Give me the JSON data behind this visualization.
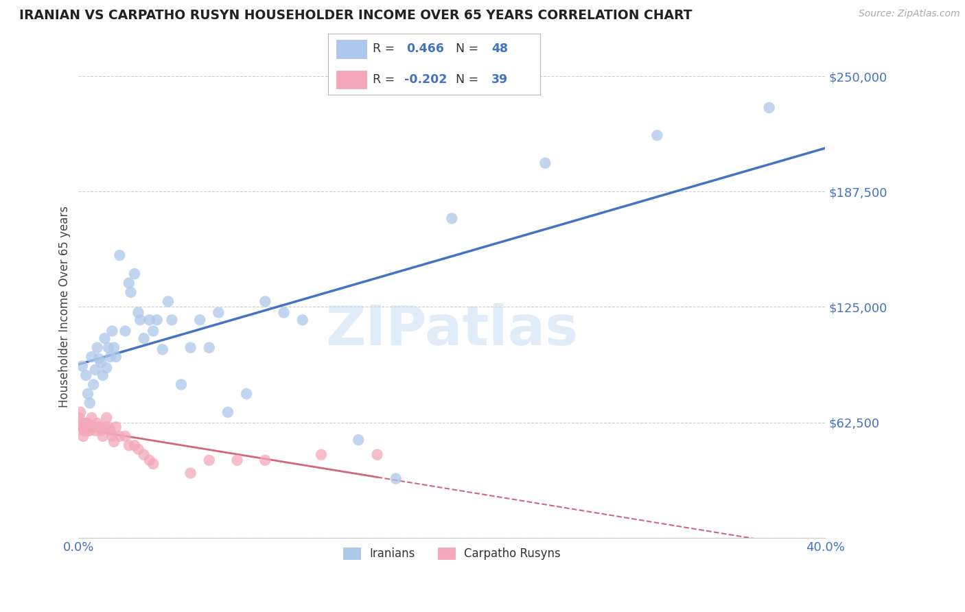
{
  "title": "IRANIAN VS CARPATHO RUSYN HOUSEHOLDER INCOME OVER 65 YEARS CORRELATION CHART",
  "source": "Source: ZipAtlas.com",
  "ylabel": "Householder Income Over 65 years",
  "xlim": [
    0.0,
    0.4
  ],
  "ylim": [
    0,
    250000
  ],
  "yticks": [
    0,
    62500,
    125000,
    187500,
    250000
  ],
  "ytick_labels": [
    "",
    "$62,500",
    "$125,000",
    "$187,500",
    "$250,000"
  ],
  "xtick_labels": [
    "0.0%",
    "40.0%"
  ],
  "xtick_positions": [
    0.0,
    0.4
  ],
  "iranian_R": "0.466",
  "iranian_N": "48",
  "carpatho_R": "-0.202",
  "carpatho_N": "39",
  "iranian_color": "#adc8ea",
  "carpatho_color": "#f4a7b9",
  "line_blue": "#4472c4",
  "line_pink": "#d4657a",
  "watermark": "ZIPatlas",
  "iranians_x": [
    0.002,
    0.004,
    0.005,
    0.006,
    0.008,
    0.009,
    0.01,
    0.011,
    0.012,
    0.013,
    0.014,
    0.015,
    0.016,
    0.017,
    0.018,
    0.019,
    0.02,
    0.022,
    0.025,
    0.027,
    0.028,
    0.03,
    0.032,
    0.033,
    0.035,
    0.038,
    0.04,
    0.042,
    0.045,
    0.048,
    0.05,
    0.055,
    0.06,
    0.065,
    0.07,
    0.075,
    0.08,
    0.09,
    0.1,
    0.11,
    0.12,
    0.15,
    0.17,
    0.2,
    0.25,
    0.31,
    0.37,
    0.007
  ],
  "iranians_y": [
    93000,
    88000,
    78000,
    73000,
    83000,
    91000,
    103000,
    97000,
    95000,
    88000,
    108000,
    92000,
    103000,
    98000,
    112000,
    103000,
    98000,
    153000,
    112000,
    138000,
    133000,
    143000,
    122000,
    118000,
    108000,
    118000,
    112000,
    118000,
    102000,
    128000,
    118000,
    83000,
    103000,
    118000,
    103000,
    122000,
    68000,
    78000,
    128000,
    122000,
    118000,
    53000,
    32000,
    173000,
    203000,
    218000,
    233000,
    98000
  ],
  "carpatho_x": [
    0.0005,
    0.001,
    0.0015,
    0.002,
    0.0025,
    0.003,
    0.0035,
    0.004,
    0.0045,
    0.005,
    0.006,
    0.007,
    0.008,
    0.009,
    0.01,
    0.011,
    0.012,
    0.013,
    0.014,
    0.015,
    0.016,
    0.017,
    0.018,
    0.019,
    0.02,
    0.022,
    0.025,
    0.027,
    0.03,
    0.032,
    0.035,
    0.038,
    0.04,
    0.06,
    0.07,
    0.085,
    0.1,
    0.13,
    0.16
  ],
  "carpatho_y": [
    65000,
    68000,
    60000,
    62000,
    55000,
    58000,
    60000,
    62000,
    58000,
    62000,
    58000,
    65000,
    60000,
    58000,
    62000,
    60000,
    58000,
    55000,
    60000,
    65000,
    60000,
    58000,
    55000,
    52000,
    60000,
    55000,
    55000,
    50000,
    50000,
    48000,
    45000,
    42000,
    40000,
    35000,
    42000,
    42000,
    42000,
    45000,
    45000
  ]
}
